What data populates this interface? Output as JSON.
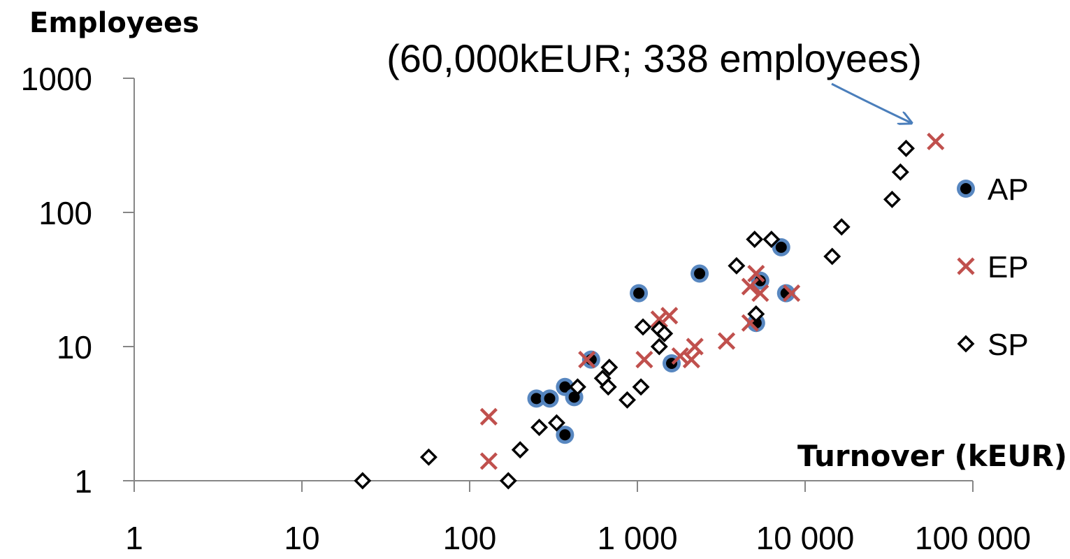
{
  "chart_data": {
    "type": "scatter",
    "xscale": "log",
    "yscale": "log",
    "xlim": [
      1,
      100000
    ],
    "ylim": [
      1,
      1000
    ],
    "xticks": [
      {
        "value": 1,
        "label": "1"
      },
      {
        "value": 10,
        "label": "10"
      },
      {
        "value": 100,
        "label": "100"
      },
      {
        "value": 1000,
        "label": "1 000"
      },
      {
        "value": 10000,
        "label": "10 000"
      },
      {
        "value": 100000,
        "label": "100 000"
      }
    ],
    "yticks": [
      {
        "value": 1,
        "label": "1"
      },
      {
        "value": 10,
        "label": "10"
      },
      {
        "value": 100,
        "label": "100"
      },
      {
        "value": 1000,
        "label": "1000"
      }
    ],
    "xlabel": "Turnover (kEUR)",
    "ylabel": "Employees",
    "grid": false,
    "legend": "right",
    "annotation": {
      "text": "(60,000kEUR; 338 employees)",
      "x": 60000,
      "y": 338,
      "arrow_color": "#4A7EBB"
    },
    "series": [
      {
        "name": "AP",
        "marker": "filled-circle",
        "color": "#000000",
        "halo_color": "#4F81BD",
        "points": [
          [
            250,
            4.1
          ],
          [
            300,
            4.1
          ],
          [
            370,
            5.0
          ],
          [
            420,
            4.2
          ],
          [
            370,
            2.2
          ],
          [
            530,
            8.0
          ],
          [
            1020,
            25
          ],
          [
            1600,
            7.5
          ],
          [
            2350,
            35
          ],
          [
            5100,
            15
          ],
          [
            5400,
            31
          ],
          [
            7200,
            55
          ],
          [
            7700,
            25
          ]
        ]
      },
      {
        "name": "EP",
        "marker": "x",
        "color": "#C0504D",
        "points": [
          [
            130,
            3.0
          ],
          [
            130,
            1.4
          ],
          [
            500,
            8.0
          ],
          [
            1100,
            8.0
          ],
          [
            1350,
            16
          ],
          [
            1550,
            17
          ],
          [
            1800,
            8.5
          ],
          [
            2100,
            8.0
          ],
          [
            2200,
            10
          ],
          [
            3400,
            11
          ],
          [
            4700,
            15
          ],
          [
            4700,
            28
          ],
          [
            5100,
            35
          ],
          [
            5400,
            25
          ],
          [
            8300,
            25
          ],
          [
            60000,
            338
          ]
        ]
      },
      {
        "name": "SP",
        "marker": "open-diamond",
        "color": "#000000",
        "points": [
          [
            23,
            1.0
          ],
          [
            57,
            1.5
          ],
          [
            170,
            1.0
          ],
          [
            200,
            1.7
          ],
          [
            260,
            2.5
          ],
          [
            330,
            2.7
          ],
          [
            440,
            5.0
          ],
          [
            620,
            5.8
          ],
          [
            670,
            5.0
          ],
          [
            680,
            7.0
          ],
          [
            870,
            4.0
          ],
          [
            1050,
            5.0
          ],
          [
            1080,
            14
          ],
          [
            1350,
            10
          ],
          [
            1350,
            13.5
          ],
          [
            1450,
            12.5
          ],
          [
            3900,
            40
          ],
          [
            5000,
            63
          ],
          [
            5100,
            17.5
          ],
          [
            6300,
            63
          ],
          [
            14500,
            47
          ],
          [
            16500,
            78
          ],
          [
            33000,
            125
          ],
          [
            37000,
            200
          ],
          [
            40000,
            300
          ]
        ]
      }
    ]
  }
}
